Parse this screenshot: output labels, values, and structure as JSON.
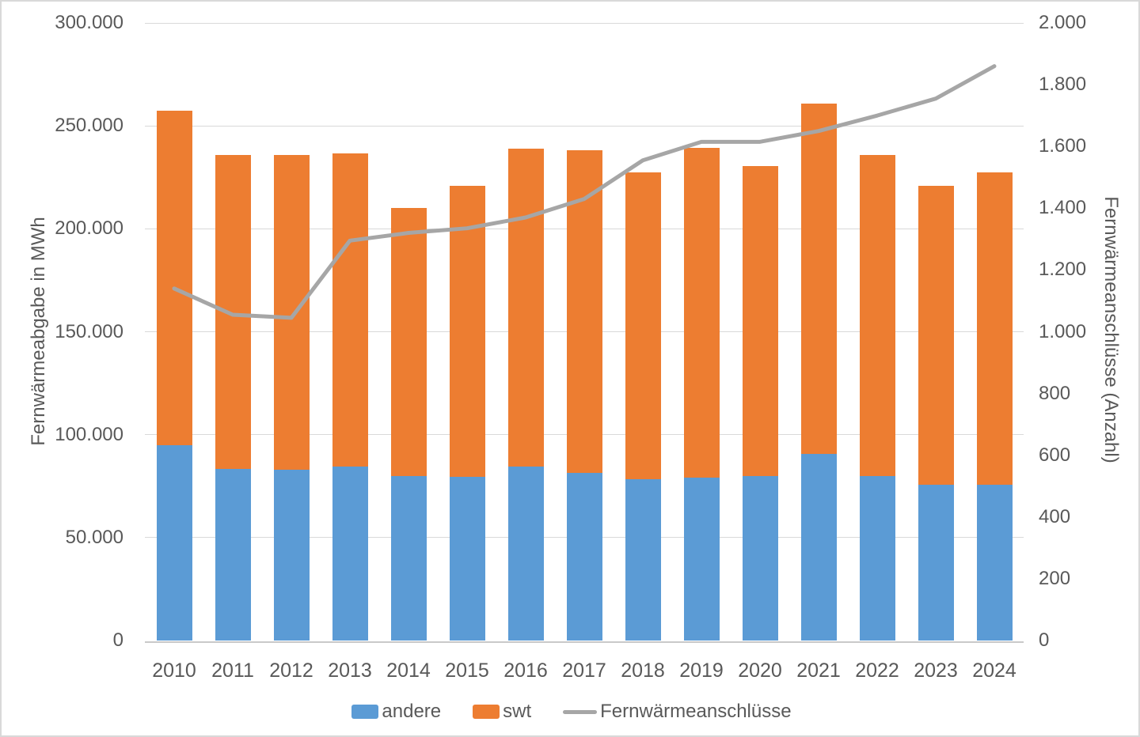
{
  "chart_data": {
    "type": "bar",
    "subtype": "stacked-bars-with-line-overlay",
    "categories": [
      "2010",
      "2011",
      "2012",
      "2013",
      "2014",
      "2015",
      "2016",
      "2017",
      "2018",
      "2019",
      "2020",
      "2021",
      "2022",
      "2023",
      "2024"
    ],
    "series": [
      {
        "name": "andere",
        "type": "bar",
        "stack": "Fernwärmeabgabe",
        "axis": "left",
        "color": "#5B9BD5",
        "values": [
          95000,
          83500,
          83000,
          84500,
          80000,
          79500,
          84500,
          81500,
          78500,
          79000,
          80000,
          90500,
          80000,
          75500,
          75500
        ]
      },
      {
        "name": "swt",
        "type": "bar",
        "stack": "Fernwärmeabgabe",
        "axis": "left",
        "color": "#ED7D31",
        "values": [
          162500,
          152500,
          153000,
          152000,
          130000,
          141500,
          154500,
          156500,
          149000,
          160500,
          150500,
          170500,
          156000,
          145500,
          152000
        ]
      },
      {
        "name": "Fernwärmeanschlüsse",
        "type": "line",
        "axis": "right",
        "color": "#A6A6A6",
        "values": [
          1140,
          1055,
          1045,
          1295,
          1320,
          1335,
          1370,
          1430,
          1555,
          1615,
          1615,
          1650,
          1700,
          1755,
          1860
        ]
      }
    ],
    "stack_totals": [
      257500,
      236000,
      236000,
      236500,
      210000,
      221000,
      239000,
      238000,
      227500,
      239500,
      230500,
      261000,
      236000,
      221000,
      227500
    ],
    "left_axis": {
      "title": "Fernwärmeabgabe in MWh",
      "min": 0,
      "max": 300000,
      "tick_step": 50000,
      "ticks": [
        0,
        50000,
        100000,
        150000,
        200000,
        250000,
        300000
      ],
      "tick_labels": [
        "0",
        "50.000",
        "100.000",
        "150.000",
        "200.000",
        "250.000",
        "300.000"
      ]
    },
    "right_axis": {
      "title": "Fernwärmeanschlüsse (Anzahl)",
      "min": 0,
      "max": 2000,
      "tick_step": 200,
      "ticks": [
        0,
        200,
        400,
        600,
        800,
        1000,
        1200,
        1400,
        1600,
        1800,
        2000
      ],
      "tick_labels": [
        "0",
        "200",
        "400",
        "600",
        "800",
        "1.000",
        "1.200",
        "1.400",
        "1.600",
        "1.800",
        "2.000"
      ]
    },
    "grid": "horizontal gridlines on left-axis ticks",
    "legend": {
      "position": "bottom-center",
      "items": [
        "andere",
        "swt",
        "Fernwärmeanschlüsse"
      ]
    },
    "colors": {
      "gridline": "#D9D9D9",
      "axis_line": "#C9C9C9",
      "text": "#595959",
      "background": "#FFFFFF",
      "page_border": "#D9D9D9"
    }
  }
}
